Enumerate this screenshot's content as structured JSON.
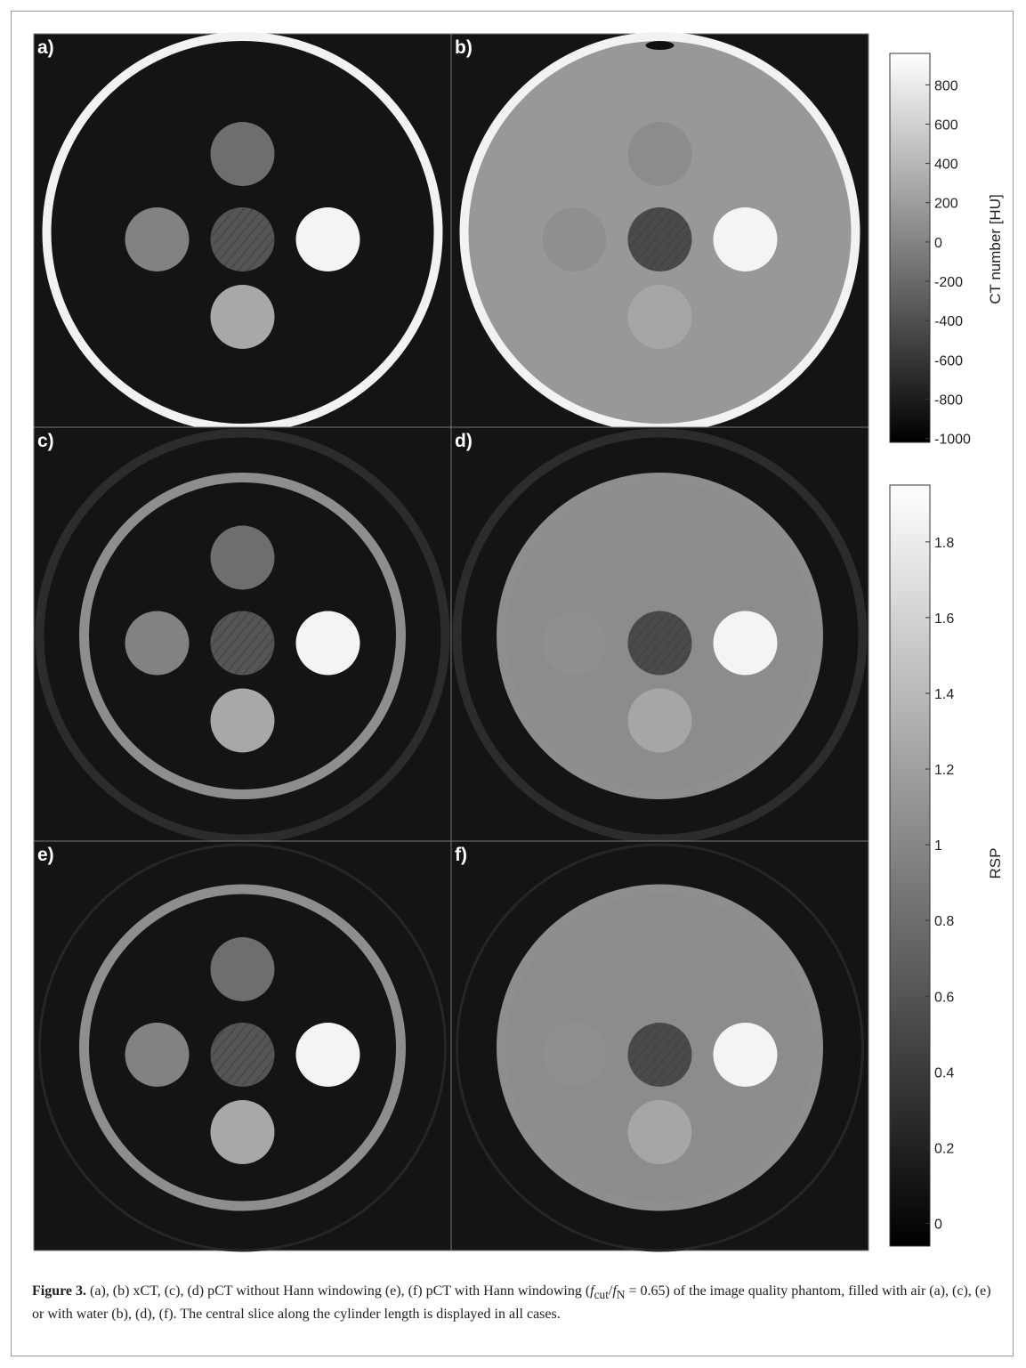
{
  "figure": {
    "panels": [
      {
        "label": "a)"
      },
      {
        "label": "b)"
      },
      {
        "label": "c)"
      },
      {
        "label": "d)"
      },
      {
        "label": "e)"
      },
      {
        "label": "f)"
      }
    ],
    "colorbars": [
      {
        "label": "CT number [HU]",
        "lim": [
          -1020,
          960
        ],
        "ticks": [
          800,
          600,
          400,
          200,
          0,
          -200,
          -400,
          -600,
          -800,
          -1000
        ]
      },
      {
        "label": "RSP",
        "lim": [
          -0.06,
          1.95
        ],
        "ticks": [
          1.8,
          1.6,
          1.4,
          1.2,
          1,
          0.8,
          0.6,
          0.4,
          0.2,
          0
        ]
      }
    ],
    "caption": {
      "label": "Figure 3.",
      "parts": [
        "(a), (b) xCT, (c), (d) pCT without Hann windowing (e), (f) pCT with Hann windowing (",
        "f",
        "cut",
        "/",
        "f",
        "N",
        " = 0.65) of the image quality phantom, filled with air (a), (c), (e) or with water (b), (d), (f). The central slice along the cylinder length is displayed in all cases."
      ]
    }
  }
}
